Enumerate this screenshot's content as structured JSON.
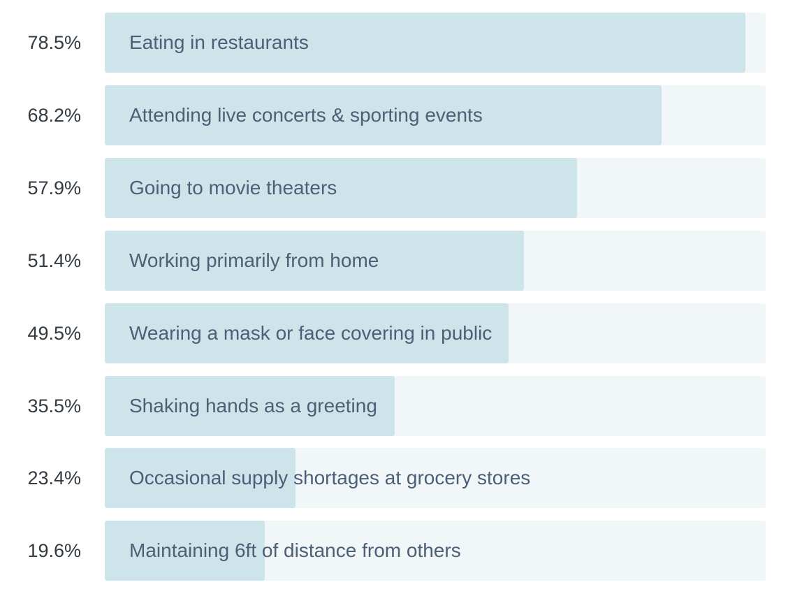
{
  "colors": {
    "bar_fill": "#cde5ea",
    "bar_track": "#f1f6f9",
    "label_text": "#4b5f76",
    "value_text": "#333a40"
  },
  "chart_data": {
    "type": "bar",
    "orientation": "horizontal",
    "max_value": 100,
    "categories": [
      "Eating in restaurants",
      "Attending live concerts & sporting events",
      "Going to movie theaters",
      "Working primarily from home",
      "Wearing a mask or face covering in public",
      "Shaking hands as a greeting",
      "Occasional supply shortages at grocery stores",
      "Maintaining 6ft of distance from others"
    ],
    "values": [
      78.5,
      68.2,
      57.9,
      51.4,
      49.5,
      35.5,
      23.4,
      19.6
    ],
    "value_labels": [
      "78.5%",
      "68.2%",
      "57.9%",
      "51.4%",
      "49.5%",
      "35.5%",
      "23.4%",
      "19.6%"
    ]
  }
}
